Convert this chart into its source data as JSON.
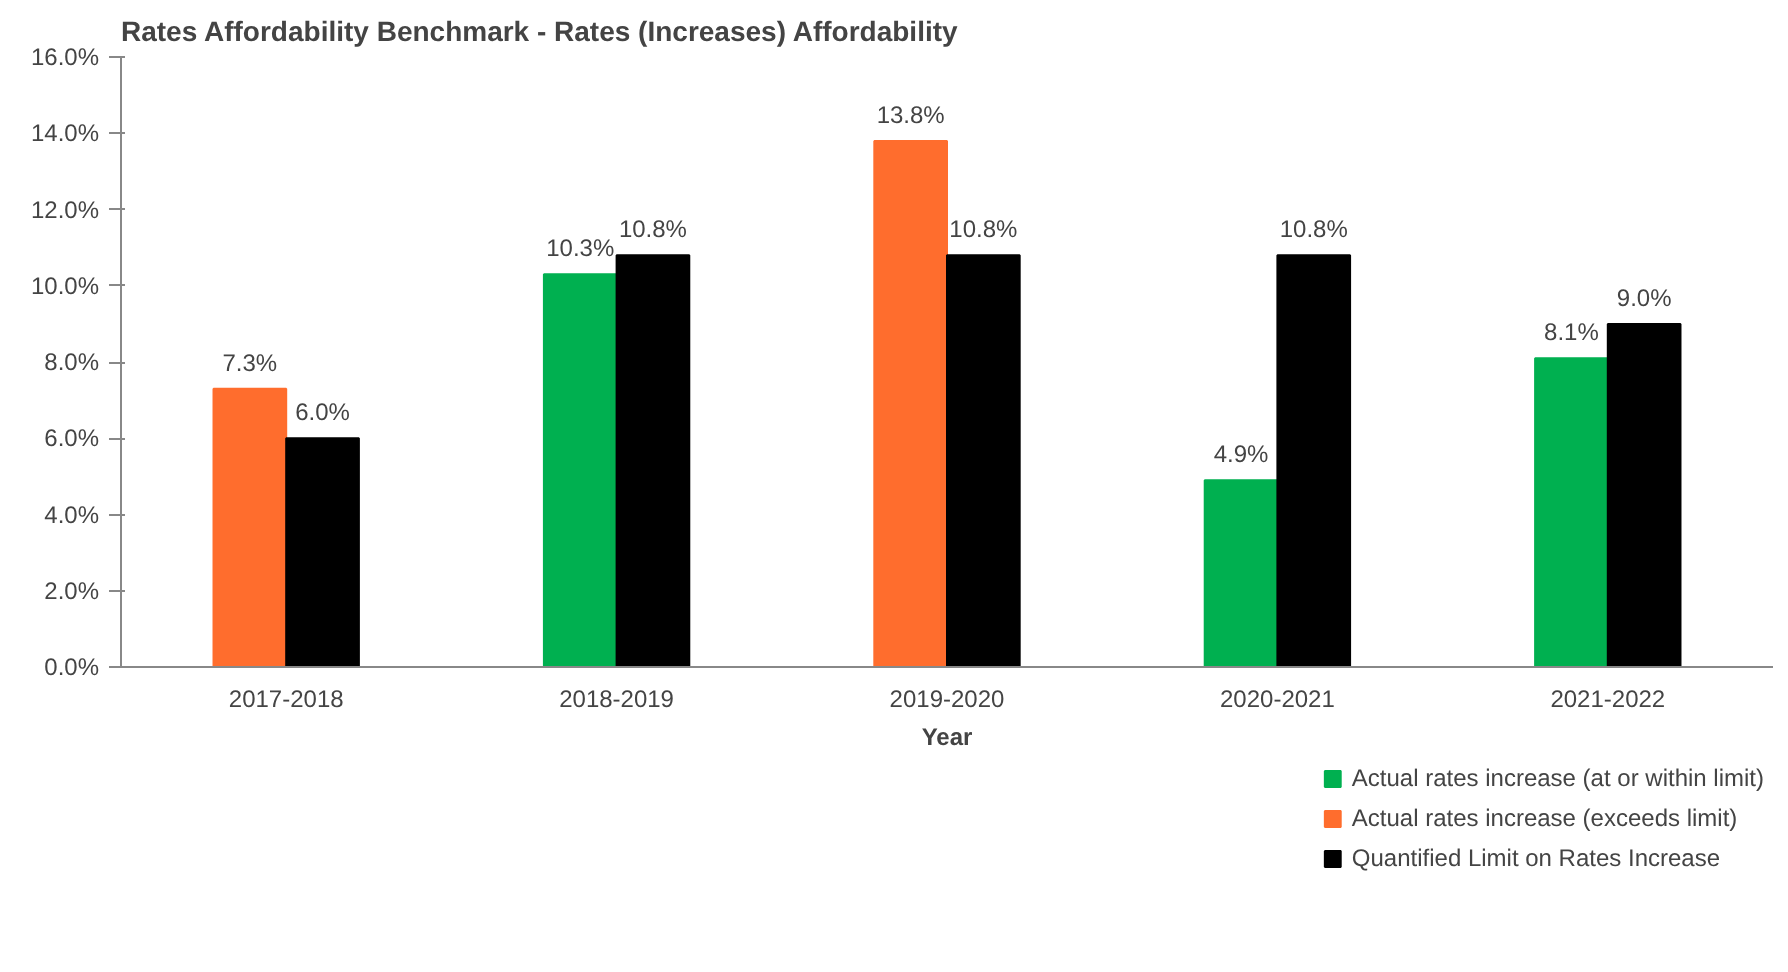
{
  "chart_data": {
    "type": "bar",
    "title": "Rates Affordability Benchmark - Rates (Increases) Affordability",
    "xlabel": "Year",
    "categories": [
      "2017-2018",
      "2018-2019",
      "2019-2020",
      "2020-2021",
      "2021-2022"
    ],
    "series": [
      {
        "name": "Actual rates increase (at or within limit)",
        "color": "#00b050",
        "values": [
          null,
          10.3,
          null,
          4.9,
          8.1
        ],
        "value_labels": [
          null,
          "10.3%",
          null,
          "4.9%",
          "8.1%"
        ]
      },
      {
        "name": "Actual rates increase (exceeds limit)",
        "color": "#ff6d2d",
        "values": [
          7.3,
          null,
          13.8,
          null,
          null
        ],
        "value_labels": [
          "7.3%",
          null,
          "13.8%",
          null,
          null
        ]
      },
      {
        "name": "Quantified Limit on Rates Increase",
        "color": "#000000",
        "values": [
          6.0,
          10.8,
          10.8,
          10.8,
          9.0
        ],
        "value_labels": [
          "6.0%",
          "10.8%",
          "10.8%",
          "10.8%",
          "9.0%"
        ]
      }
    ],
    "ylim": [
      0,
      16
    ],
    "yticks": [
      {
        "value": 0,
        "label": "0.0%"
      },
      {
        "value": 2,
        "label": "2.0%"
      },
      {
        "value": 4,
        "label": "4.0%"
      },
      {
        "value": 6,
        "label": "6.0%"
      },
      {
        "value": 8,
        "label": "8.0%"
      },
      {
        "value": 10,
        "label": "10.0%"
      },
      {
        "value": 12,
        "label": "12.0%"
      },
      {
        "value": 14,
        "label": "14.0%"
      },
      {
        "value": 16,
        "label": "16.0%"
      }
    ],
    "legend": "bottom right",
    "grid": false
  }
}
